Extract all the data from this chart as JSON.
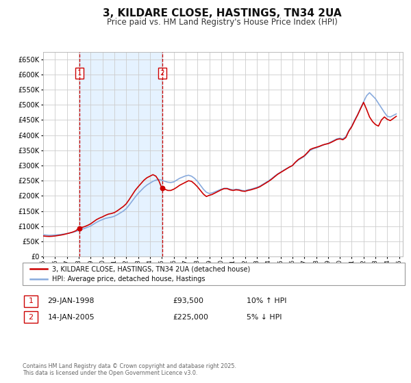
{
  "title": "3, KILDARE CLOSE, HASTINGS, TN34 2UA",
  "subtitle": "Price paid vs. HM Land Registry's House Price Index (HPI)",
  "background_color": "#ffffff",
  "plot_bg_color": "#ffffff",
  "grid_color": "#cccccc",
  "title_fontsize": 11,
  "subtitle_fontsize": 8.5,
  "line1_color": "#cc0000",
  "line2_color": "#88aadd",
  "vline_color": "#cc0000",
  "shade_color": "#ddeeff",
  "transaction1_date": 1998.08,
  "transaction2_date": 2005.04,
  "transaction1_price": 93500,
  "transaction2_price": 225000,
  "legend_line1": "3, KILDARE CLOSE, HASTINGS, TN34 2UA (detached house)",
  "legend_line2": "HPI: Average price, detached house, Hastings",
  "table_row1_num": "1",
  "table_row1_date": "29-JAN-1998",
  "table_row1_price": "£93,500",
  "table_row1_hpi": "10% ↑ HPI",
  "table_row2_num": "2",
  "table_row2_date": "14-JAN-2005",
  "table_row2_price": "£225,000",
  "table_row2_hpi": "5% ↓ HPI",
  "footer": "Contains HM Land Registry data © Crown copyright and database right 2025.\nThis data is licensed under the Open Government Licence v3.0.",
  "ylim_max": 675000,
  "hpi_data": {
    "years": [
      1995.0,
      1995.25,
      1995.5,
      1995.75,
      1996.0,
      1996.25,
      1996.5,
      1996.75,
      1997.0,
      1997.25,
      1997.5,
      1997.75,
      1998.0,
      1998.25,
      1998.5,
      1998.75,
      1999.0,
      1999.25,
      1999.5,
      1999.75,
      2000.0,
      2000.25,
      2000.5,
      2000.75,
      2001.0,
      2001.25,
      2001.5,
      2001.75,
      2002.0,
      2002.25,
      2002.5,
      2002.75,
      2003.0,
      2003.25,
      2003.5,
      2003.75,
      2004.0,
      2004.25,
      2004.5,
      2004.75,
      2005.0,
      2005.25,
      2005.5,
      2005.75,
      2006.0,
      2006.25,
      2006.5,
      2006.75,
      2007.0,
      2007.25,
      2007.5,
      2007.75,
      2008.0,
      2008.25,
      2008.5,
      2008.75,
      2009.0,
      2009.25,
      2009.5,
      2009.75,
      2010.0,
      2010.25,
      2010.5,
      2010.75,
      2011.0,
      2011.25,
      2011.5,
      2011.75,
      2012.0,
      2012.25,
      2012.5,
      2012.75,
      2013.0,
      2013.25,
      2013.5,
      2013.75,
      2014.0,
      2014.25,
      2014.5,
      2014.75,
      2015.0,
      2015.25,
      2015.5,
      2015.75,
      2016.0,
      2016.25,
      2016.5,
      2016.75,
      2017.0,
      2017.25,
      2017.5,
      2017.75,
      2018.0,
      2018.25,
      2018.5,
      2018.75,
      2019.0,
      2019.25,
      2019.5,
      2019.75,
      2020.0,
      2020.25,
      2020.5,
      2020.75,
      2021.0,
      2021.25,
      2021.5,
      2021.75,
      2022.0,
      2022.25,
      2022.5,
      2022.75,
      2023.0,
      2023.25,
      2023.5,
      2023.75,
      2024.0,
      2024.25,
      2024.5,
      2024.75
    ],
    "values": [
      72000,
      71000,
      70000,
      70500,
      71000,
      72000,
      73000,
      74500,
      76000,
      78000,
      80000,
      83000,
      86000,
      90000,
      93000,
      97000,
      101000,
      107000,
      113000,
      118000,
      122000,
      126000,
      128000,
      130000,
      133000,
      138000,
      144000,
      150000,
      158000,
      170000,
      183000,
      196000,
      208000,
      218000,
      228000,
      236000,
      242000,
      248000,
      252000,
      254000,
      252000,
      248000,
      245000,
      244000,
      246000,
      252000,
      258000,
      262000,
      266000,
      268000,
      265000,
      258000,
      248000,
      235000,
      222000,
      212000,
      208000,
      210000,
      214000,
      218000,
      222000,
      225000,
      225000,
      222000,
      220000,
      222000,
      221000,
      218000,
      217000,
      220000,
      222000,
      225000,
      228000,
      232000,
      238000,
      244000,
      250000,
      257000,
      265000,
      272000,
      278000,
      284000,
      290000,
      295000,
      300000,
      310000,
      318000,
      324000,
      330000,
      340000,
      350000,
      355000,
      358000,
      362000,
      366000,
      370000,
      373000,
      378000,
      383000,
      388000,
      390000,
      388000,
      395000,
      415000,
      430000,
      450000,
      468000,
      490000,
      510000,
      530000,
      540000,
      530000,
      520000,
      505000,
      490000,
      475000,
      462000,
      460000,
      465000,
      470000
    ]
  },
  "price_data": {
    "years": [
      1995.0,
      1995.25,
      1995.5,
      1995.75,
      1996.0,
      1996.25,
      1996.5,
      1996.75,
      1997.0,
      1997.25,
      1997.5,
      1997.75,
      1998.0,
      1998.25,
      1998.5,
      1998.75,
      1999.0,
      1999.25,
      1999.5,
      1999.75,
      2000.0,
      2000.25,
      2000.5,
      2000.75,
      2001.0,
      2001.25,
      2001.5,
      2001.75,
      2002.0,
      2002.25,
      2002.5,
      2002.75,
      2003.0,
      2003.25,
      2003.5,
      2003.75,
      2004.0,
      2004.25,
      2004.5,
      2004.75,
      2005.0,
      2005.25,
      2005.5,
      2005.75,
      2006.0,
      2006.25,
      2006.5,
      2006.75,
      2007.0,
      2007.25,
      2007.5,
      2007.75,
      2008.0,
      2008.25,
      2008.5,
      2008.75,
      2009.0,
      2009.25,
      2009.5,
      2009.75,
      2010.0,
      2010.25,
      2010.5,
      2010.75,
      2011.0,
      2011.25,
      2011.5,
      2011.75,
      2012.0,
      2012.25,
      2012.5,
      2012.75,
      2013.0,
      2013.25,
      2013.5,
      2013.75,
      2014.0,
      2014.25,
      2014.5,
      2014.75,
      2015.0,
      2015.25,
      2015.5,
      2015.75,
      2016.0,
      2016.25,
      2016.5,
      2016.75,
      2017.0,
      2017.25,
      2017.5,
      2017.75,
      2018.0,
      2018.25,
      2018.5,
      2018.75,
      2019.0,
      2019.25,
      2019.5,
      2019.75,
      2020.0,
      2020.25,
      2020.5,
      2020.75,
      2021.0,
      2021.25,
      2021.5,
      2021.75,
      2022.0,
      2022.25,
      2022.5,
      2022.75,
      2023.0,
      2023.25,
      2023.5,
      2023.75,
      2024.0,
      2024.25,
      2024.5,
      2024.75
    ],
    "values": [
      68000,
      67000,
      66500,
      67000,
      68000,
      69500,
      71000,
      73000,
      75500,
      78000,
      81000,
      85000,
      93500,
      96000,
      99000,
      103000,
      108000,
      115000,
      122000,
      127000,
      131000,
      136000,
      140000,
      142000,
      145000,
      151000,
      158000,
      165000,
      174000,
      188000,
      203000,
      218000,
      230000,
      241000,
      252000,
      260000,
      265000,
      270000,
      265000,
      250000,
      225000,
      222000,
      218000,
      218000,
      222000,
      228000,
      235000,
      240000,
      245000,
      250000,
      248000,
      240000,
      230000,
      218000,
      206000,
      198000,
      202000,
      205000,
      210000,
      215000,
      220000,
      224000,
      224000,
      220000,
      218000,
      220000,
      219000,
      216000,
      215000,
      218000,
      220000,
      223000,
      226000,
      230000,
      236000,
      242000,
      248000,
      255000,
      263000,
      271000,
      277000,
      283000,
      289000,
      295000,
      300000,
      311000,
      320000,
      326000,
      332000,
      342000,
      353000,
      357000,
      360000,
      363000,
      367000,
      370000,
      372000,
      376000,
      381000,
      386000,
      388000,
      385000,
      392000,
      413000,
      428000,
      448000,
      467000,
      488000,
      508000,
      485000,
      460000,
      445000,
      435000,
      430000,
      450000,
      460000,
      452000,
      448000,
      455000,
      462000
    ]
  }
}
